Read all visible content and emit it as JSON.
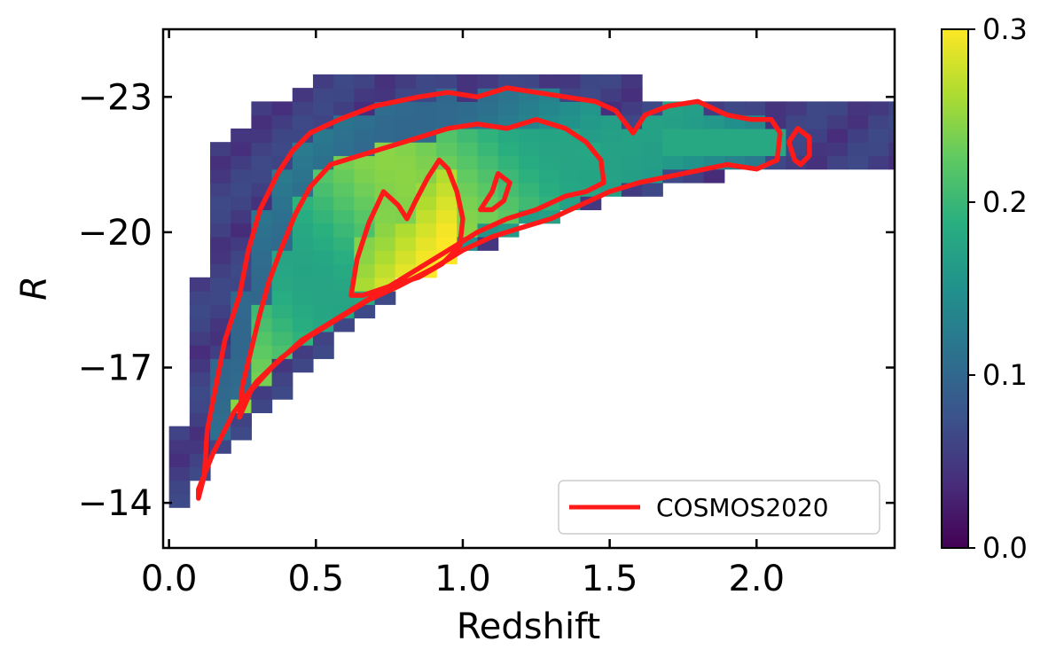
{
  "chart_data": {
    "type": "heatmap",
    "xlabel": "Redshift",
    "ylabel": "R",
    "xlim": [
      -0.02,
      2.47
    ],
    "ylim": [
      -13.0,
      -24.5
    ],
    "x_ticks": [
      0.0,
      0.5,
      1.0,
      1.5,
      2.0
    ],
    "x_tick_labels": [
      "0.0",
      "0.5",
      "1.0",
      "1.5",
      "2.0"
    ],
    "y_ticks": [
      -23,
      -20,
      -17,
      -14
    ],
    "y_tick_labels": [
      "−23",
      "−20",
      "−17",
      "−14"
    ],
    "colorbar": {
      "range": [
        0.0,
        0.3
      ],
      "ticks": [
        0.0,
        0.1,
        0.2,
        0.3
      ],
      "tick_labels": [
        "0.0",
        "0.1",
        "0.2",
        "0.3"
      ],
      "colormap": [
        "#440154",
        "#472d7b",
        "#3b528b",
        "#2c728e",
        "#21918c",
        "#28ae80",
        "#5ec962",
        "#addc30",
        "#fde725"
      ]
    },
    "bin": {
      "dz": 0.07,
      "dR": 0.3
    },
    "grid": false,
    "legend": {
      "entries": [
        {
          "label": "COSMOS2020",
          "color": "#ff1a1a"
        }
      ],
      "location": "lower-right"
    },
    "contour_color": "#ff1a1a",
    "contours": [
      {
        "name": "outer",
        "points": [
          [
            0.1,
            -14.1
          ],
          [
            0.12,
            -14.6
          ],
          [
            0.13,
            -15.6
          ],
          [
            0.16,
            -16.6
          ],
          [
            0.19,
            -17.6
          ],
          [
            0.24,
            -18.6
          ],
          [
            0.27,
            -19.6
          ],
          [
            0.31,
            -20.5
          ],
          [
            0.37,
            -21.3
          ],
          [
            0.42,
            -21.8
          ],
          [
            0.48,
            -22.2
          ],
          [
            0.58,
            -22.5
          ],
          [
            0.7,
            -22.8
          ],
          [
            0.85,
            -23.0
          ],
          [
            0.95,
            -23.1
          ],
          [
            1.05,
            -23.0
          ],
          [
            1.15,
            -23.2
          ],
          [
            1.25,
            -23.1
          ],
          [
            1.35,
            -23.0
          ],
          [
            1.45,
            -22.9
          ],
          [
            1.52,
            -22.7
          ],
          [
            1.58,
            -22.2
          ],
          [
            1.62,
            -22.6
          ],
          [
            1.7,
            -22.8
          ],
          [
            1.8,
            -22.9
          ],
          [
            1.9,
            -22.6
          ],
          [
            1.98,
            -22.5
          ],
          [
            2.05,
            -22.5
          ],
          [
            2.08,
            -22.2
          ],
          [
            2.07,
            -21.6
          ],
          [
            2.0,
            -21.4
          ],
          [
            1.9,
            -21.5
          ],
          [
            1.75,
            -21.3
          ],
          [
            1.6,
            -21.1
          ],
          [
            1.5,
            -20.9
          ],
          [
            1.4,
            -20.6
          ],
          [
            1.3,
            -20.3
          ],
          [
            1.2,
            -20.1
          ],
          [
            1.1,
            -19.9
          ],
          [
            1.0,
            -19.6
          ],
          [
            0.9,
            -19.2
          ],
          [
            0.78,
            -18.8
          ],
          [
            0.68,
            -18.5
          ],
          [
            0.58,
            -18.1
          ],
          [
            0.48,
            -17.7
          ],
          [
            0.38,
            -17.2
          ],
          [
            0.3,
            -16.7
          ],
          [
            0.22,
            -16.0
          ],
          [
            0.15,
            -15.1
          ],
          [
            0.1,
            -14.3
          ]
        ]
      },
      {
        "name": "middle",
        "points": [
          [
            0.24,
            -15.9
          ],
          [
            0.25,
            -16.6
          ],
          [
            0.28,
            -17.4
          ],
          [
            0.31,
            -18.2
          ],
          [
            0.34,
            -18.9
          ],
          [
            0.38,
            -19.6
          ],
          [
            0.43,
            -20.4
          ],
          [
            0.48,
            -21.0
          ],
          [
            0.55,
            -21.5
          ],
          [
            0.65,
            -21.7
          ],
          [
            0.75,
            -21.9
          ],
          [
            0.85,
            -22.1
          ],
          [
            0.95,
            -22.3
          ],
          [
            1.05,
            -22.4
          ],
          [
            1.15,
            -22.3
          ],
          [
            1.25,
            -22.5
          ],
          [
            1.35,
            -22.3
          ],
          [
            1.42,
            -22.0
          ],
          [
            1.47,
            -21.6
          ],
          [
            1.48,
            -21.1
          ],
          [
            1.42,
            -20.9
          ],
          [
            1.35,
            -20.8
          ],
          [
            1.25,
            -20.5
          ],
          [
            1.15,
            -20.3
          ],
          [
            1.05,
            -20.0
          ],
          [
            0.95,
            -19.6
          ],
          [
            0.85,
            -19.2
          ],
          [
            0.75,
            -18.8
          ],
          [
            0.65,
            -18.4
          ],
          [
            0.55,
            -18.0
          ],
          [
            0.45,
            -17.6
          ],
          [
            0.35,
            -17.0
          ],
          [
            0.28,
            -16.5
          ],
          [
            0.24,
            -15.9
          ]
        ]
      },
      {
        "name": "inner",
        "points": [
          [
            0.62,
            -18.6
          ],
          [
            0.64,
            -19.4
          ],
          [
            0.68,
            -20.2
          ],
          [
            0.73,
            -20.9
          ],
          [
            0.78,
            -20.6
          ],
          [
            0.81,
            -20.3
          ],
          [
            0.84,
            -20.7
          ],
          [
            0.88,
            -21.2
          ],
          [
            0.92,
            -21.6
          ],
          [
            0.95,
            -21.4
          ],
          [
            0.98,
            -20.9
          ],
          [
            1.0,
            -20.3
          ],
          [
            0.99,
            -19.7
          ],
          [
            0.93,
            -19.3
          ],
          [
            0.85,
            -19.0
          ],
          [
            0.75,
            -18.8
          ],
          [
            0.66,
            -18.6
          ],
          [
            0.62,
            -18.6
          ]
        ]
      },
      {
        "name": "island-1",
        "points": [
          [
            1.06,
            -20.5
          ],
          [
            1.1,
            -20.9
          ],
          [
            1.12,
            -21.3
          ],
          [
            1.16,
            -21.1
          ],
          [
            1.14,
            -20.7
          ],
          [
            1.1,
            -20.5
          ],
          [
            1.06,
            -20.5
          ]
        ]
      },
      {
        "name": "island-2",
        "points": [
          [
            2.13,
            -21.6
          ],
          [
            2.11,
            -22.0
          ],
          [
            2.14,
            -22.3
          ],
          [
            2.18,
            -22.1
          ],
          [
            2.18,
            -21.7
          ],
          [
            2.15,
            -21.5
          ],
          [
            2.13,
            -21.6
          ]
        ]
      }
    ]
  }
}
